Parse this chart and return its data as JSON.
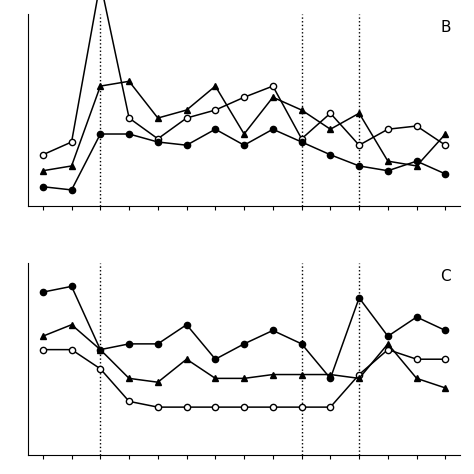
{
  "panel_B": {
    "label": "B",
    "x": [
      1,
      2,
      3,
      4,
      5,
      6,
      7,
      8,
      9,
      10,
      11,
      12,
      13,
      14,
      15
    ],
    "open_circle": [
      3.2,
      4.0,
      14.0,
      5.5,
      4.2,
      5.5,
      6.0,
      6.8,
      7.5,
      4.2,
      5.8,
      3.8,
      4.8,
      5.0,
      3.8
    ],
    "filled_triangle": [
      2.2,
      2.5,
      7.5,
      7.8,
      5.5,
      6.0,
      7.5,
      4.5,
      6.8,
      6.0,
      4.8,
      5.8,
      2.8,
      2.5,
      4.5
    ],
    "filled_circle": [
      1.2,
      1.0,
      4.5,
      4.5,
      4.0,
      3.8,
      4.8,
      3.8,
      4.8,
      4.0,
      3.2,
      2.5,
      2.2,
      2.8,
      2.0
    ],
    "vlines": [
      3,
      10,
      12
    ],
    "ylim": [
      0,
      12
    ]
  },
  "panel_C": {
    "label": "C",
    "x": [
      1,
      2,
      3,
      4,
      5,
      6,
      7,
      8,
      9,
      10,
      11,
      12,
      13,
      14,
      15
    ],
    "filled_circle": [
      8.5,
      8.8,
      5.5,
      5.8,
      5.8,
      6.8,
      5.0,
      5.8,
      6.5,
      5.8,
      4.0,
      8.2,
      6.2,
      7.2,
      6.5
    ],
    "filled_triangle": [
      6.2,
      6.8,
      5.5,
      4.0,
      3.8,
      5.0,
      4.0,
      4.0,
      4.2,
      4.2,
      4.2,
      4.0,
      5.8,
      4.0,
      3.5
    ],
    "open_circle": [
      5.5,
      5.5,
      4.5,
      2.8,
      2.5,
      2.5,
      2.5,
      2.5,
      2.5,
      2.5,
      2.5,
      4.2,
      5.5,
      5.0,
      5.0
    ],
    "vlines": [
      3,
      10,
      12
    ],
    "ylim": [
      0,
      10
    ]
  },
  "line_color": "#000000",
  "bg_color": "#ffffff"
}
